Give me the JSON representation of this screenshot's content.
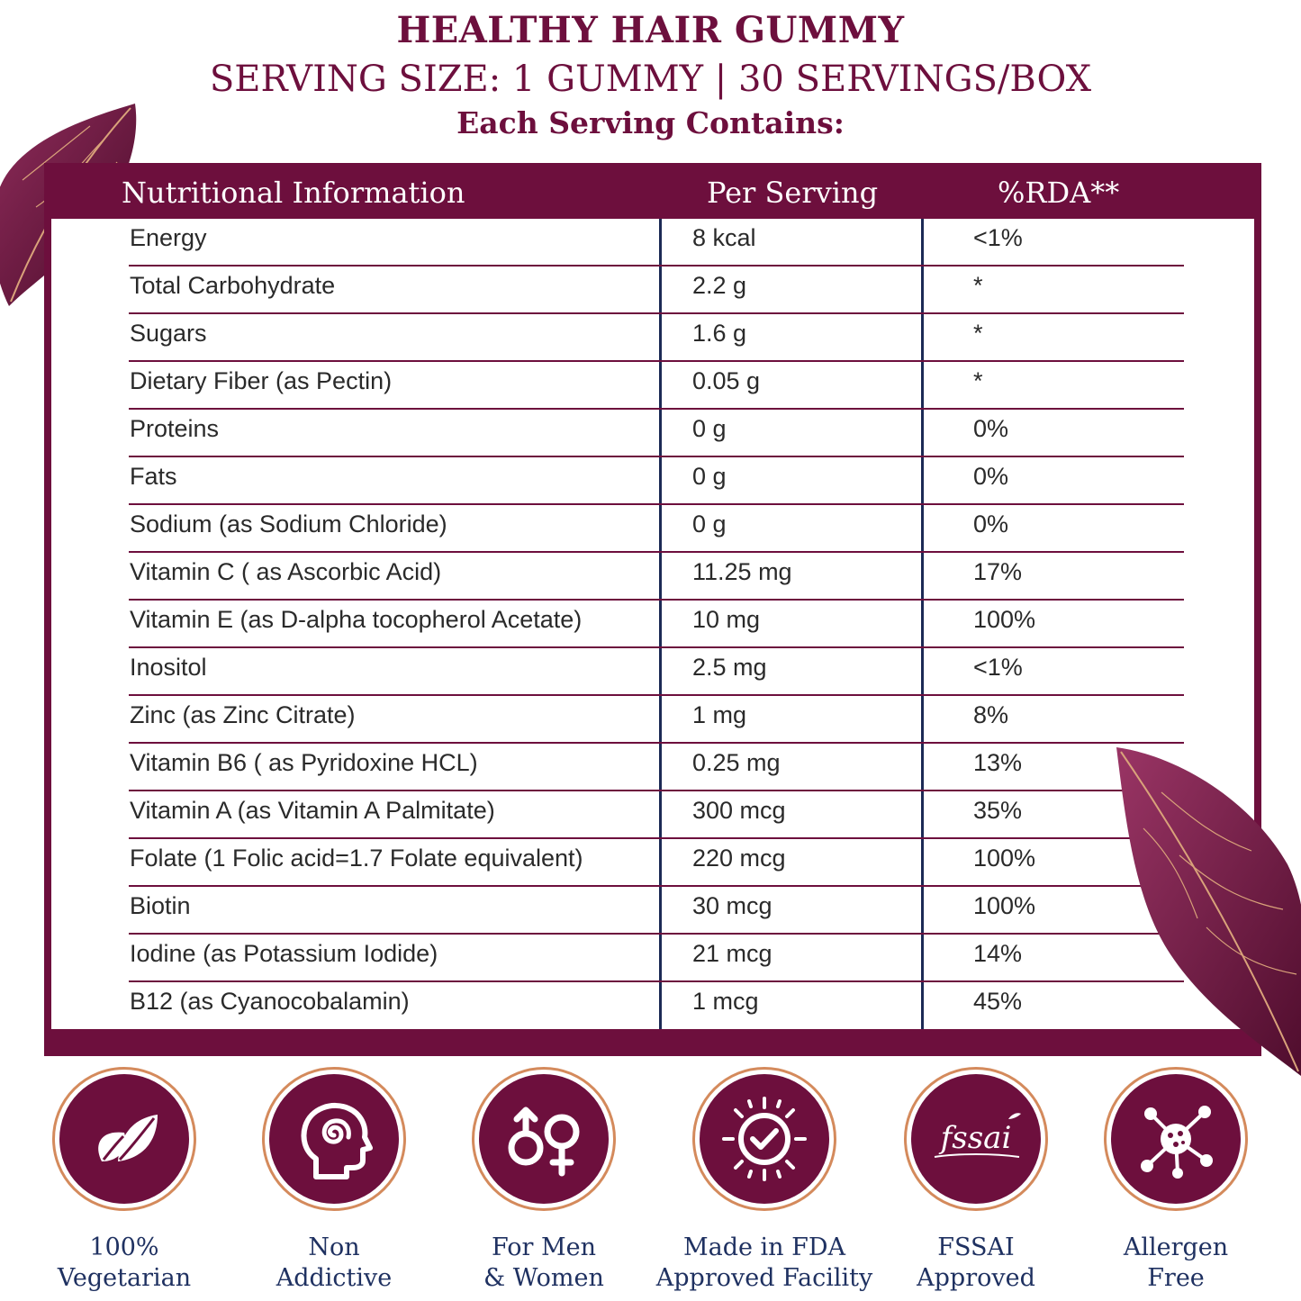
{
  "header": {
    "title": "HEALTHY HAIR GUMMY",
    "subtitle": "SERVING SIZE: 1 GUMMY | 30 SERVINGS/BOX",
    "each_serving": "Each Serving Contains:"
  },
  "table": {
    "columns": [
      "Nutritional Information",
      "Per Serving",
      "%RDA**"
    ],
    "rows": [
      {
        "name": "Energy",
        "per_serving": "8 kcal",
        "rda": "<1%"
      },
      {
        "name": "Total Carbohydrate",
        "per_serving": "2.2 g",
        "rda": "*"
      },
      {
        "name": "Sugars",
        "per_serving": "1.6 g",
        "rda": "*"
      },
      {
        "name": "Dietary Fiber (as Pectin)",
        "per_serving": "0.05 g",
        "rda": "*"
      },
      {
        "name": "Proteins",
        "per_serving": "0 g",
        "rda": "0%"
      },
      {
        "name": "Fats",
        "per_serving": "0 g",
        "rda": "0%"
      },
      {
        "name": "Sodium (as Sodium Chloride)",
        "per_serving": "0 g",
        "rda": "0%"
      },
      {
        "name": "Vitamin C ( as Ascorbic Acid)",
        "per_serving": "11.25 mg",
        "rda": "17%"
      },
      {
        "name": "Vitamin E (as D-alpha tocopherol Acetate)",
        "per_serving": "10 mg",
        "rda": "100%"
      },
      {
        "name": "Inositol",
        "per_serving": "2.5 mg",
        "rda": "<1%"
      },
      {
        "name": "Zinc (as Zinc Citrate)",
        "per_serving": "1 mg",
        "rda": "8%"
      },
      {
        "name": "Vitamin B6 ( as Pyridoxine HCL)",
        "per_serving": "0.25 mg",
        "rda": "13%"
      },
      {
        "name": "Vitamin A (as Vitamin A Palmitate)",
        "per_serving": "300 mcg",
        "rda": "35%"
      },
      {
        "name": "Folate (1 Folic acid=1.7 Folate equivalent)",
        "per_serving": "220 mcg",
        "rda": "100%"
      },
      {
        "name": "Biotin",
        "per_serving": "30 mcg",
        "rda": "100%"
      },
      {
        "name": "Iodine (as Potassium Iodide)",
        "per_serving": "21 mcg",
        "rda": "14%"
      },
      {
        "name": "B12 (as Cyanocobalamin)",
        "per_serving": "1 mcg",
        "rda": "45%"
      }
    ]
  },
  "badges": [
    {
      "icon": "leaf-icon",
      "line1": "100%",
      "line2": "Vegetarian"
    },
    {
      "icon": "head-spiral-icon",
      "line1": "Non",
      "line2": "Addictive"
    },
    {
      "icon": "gender-icon",
      "line1": "For Men",
      "line2": "& Women"
    },
    {
      "icon": "sun-check-icon",
      "line1": "Made in FDA",
      "line2": "Approved Facility"
    },
    {
      "icon": "fssai-logo-icon",
      "line1": "FSSAI",
      "line2": "Approved",
      "logo_text": "fssai"
    },
    {
      "icon": "molecule-icon",
      "line1": "Allergen",
      "line2": "Free"
    }
  ],
  "colors": {
    "brand": "#6d0f3d",
    "text_dark": "#1f3161",
    "ring": "#d48a5c",
    "divider": "#1c2a55"
  }
}
